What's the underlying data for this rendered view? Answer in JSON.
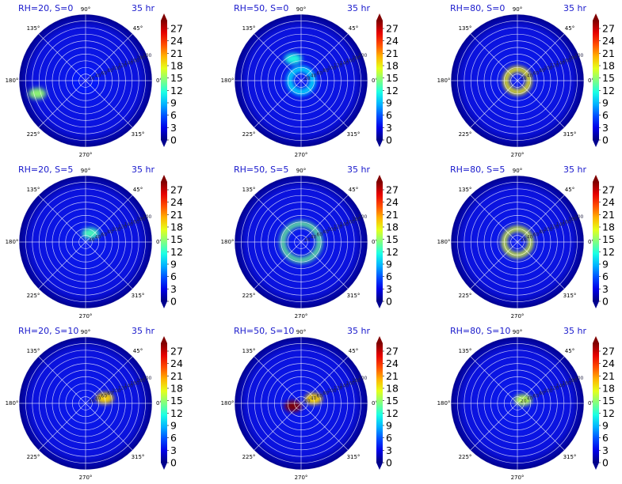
{
  "figure": {
    "panels": [
      {
        "title": "RH=20, S=0",
        "time": "35 hr"
      },
      {
        "title": "RH=50, S=0",
        "time": "35 hr"
      },
      {
        "title": "RH=80, S=0",
        "time": "35 hr"
      },
      {
        "title": "RH=20, S=5",
        "time": "35 hr"
      },
      {
        "title": "RH=50, S=5",
        "time": "35 hr"
      },
      {
        "title": "RH=80, S=5",
        "time": "35 hr"
      },
      {
        "title": "RH=20, S=10",
        "time": "35 hr"
      },
      {
        "title": "RH=50, S=10",
        "time": "35 hr"
      },
      {
        "title": "RH=80, S=10",
        "time": "35 hr"
      }
    ],
    "angle_labels": [
      "0°",
      "45°",
      "90°",
      "135°",
      "180°",
      "225°",
      "270°",
      "315°"
    ],
    "radial_labels": [
      "20",
      "40",
      "60",
      "80",
      "100",
      "120",
      "140",
      "160",
      "180",
      "200"
    ],
    "colorbar_ticks": [
      "0",
      "3",
      "6",
      "9",
      "12",
      "15",
      "18",
      "21",
      "24",
      "27"
    ],
    "colors": {
      "title_text": "#1a1acc",
      "grid": "#ffffff",
      "colormap": "jet"
    }
  },
  "chart_data": [
    {
      "type": "heatmap",
      "projection": "polar",
      "title": "RH=20, S=0",
      "annotation": "35 hr",
      "colorbar_range": [
        0,
        27
      ],
      "colormap": "jet",
      "features": [
        {
          "kind": "patch",
          "r": 150,
          "angle": 195,
          "value": 14
        },
        {
          "kind": "ring",
          "r": 30,
          "value": 4
        }
      ]
    },
    {
      "type": "heatmap",
      "projection": "polar",
      "title": "RH=50, S=0",
      "annotation": "35 hr",
      "colorbar_range": [
        0,
        27
      ],
      "colormap": "jet",
      "features": [
        {
          "kind": "ring",
          "r": 35,
          "value": 10
        },
        {
          "kind": "patch",
          "r": 70,
          "angle": 110,
          "value": 11
        }
      ]
    },
    {
      "type": "heatmap",
      "projection": "polar",
      "title": "RH=80, S=0",
      "annotation": "35 hr",
      "colorbar_range": [
        0,
        27
      ],
      "colormap": "jet",
      "features": [
        {
          "kind": "ring",
          "r": 35,
          "value": 17
        }
      ]
    },
    {
      "type": "heatmap",
      "projection": "polar",
      "title": "RH=20, S=5",
      "annotation": "35 hr",
      "colorbar_range": [
        0,
        27
      ],
      "colormap": "jet",
      "features": [
        {
          "kind": "patch",
          "r": 30,
          "angle": 60,
          "value": 12
        }
      ]
    },
    {
      "type": "heatmap",
      "projection": "polar",
      "title": "RH=50, S=5",
      "annotation": "35 hr",
      "colorbar_range": [
        0,
        27
      ],
      "colormap": "jet",
      "features": [
        {
          "kind": "ring",
          "r": 55,
          "value": 13
        }
      ]
    },
    {
      "type": "heatmap",
      "projection": "polar",
      "title": "RH=80, S=5",
      "annotation": "35 hr",
      "colorbar_range": [
        0,
        27
      ],
      "colormap": "jet",
      "features": [
        {
          "kind": "ring",
          "r": 40,
          "value": 16
        }
      ]
    },
    {
      "type": "heatmap",
      "projection": "polar",
      "title": "RH=20, S=10",
      "annotation": "35 hr",
      "colorbar_range": [
        0,
        27
      ],
      "colormap": "jet",
      "features": [
        {
          "kind": "patch",
          "r": 60,
          "angle": 15,
          "value": 18
        }
      ]
    },
    {
      "type": "heatmap",
      "projection": "polar",
      "title": "RH=50, S=10",
      "annotation": "35 hr",
      "colorbar_range": [
        0,
        27
      ],
      "colormap": "jet",
      "features": [
        {
          "kind": "patch",
          "r": 25,
          "angle": 200,
          "value": 27
        },
        {
          "kind": "patch",
          "r": 40,
          "angle": 20,
          "value": 18
        }
      ]
    },
    {
      "type": "heatmap",
      "projection": "polar",
      "title": "RH=80, S=10",
      "annotation": "35 hr",
      "colorbar_range": [
        0,
        27
      ],
      "colormap": "jet",
      "features": [
        {
          "kind": "patch",
          "r": 20,
          "angle": 30,
          "value": 15
        }
      ]
    }
  ]
}
